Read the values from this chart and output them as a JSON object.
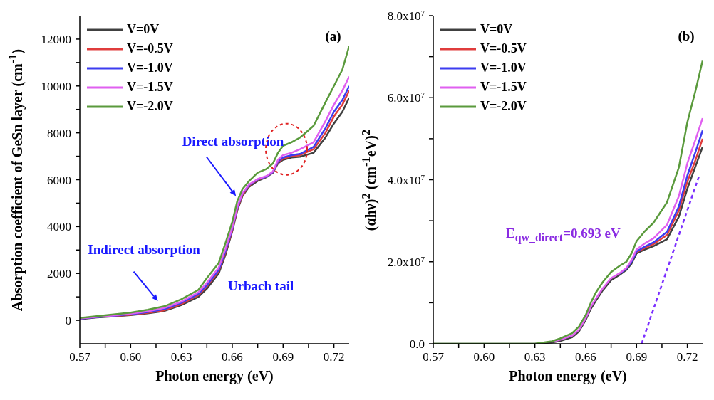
{
  "chart_data": [
    {
      "type": "line",
      "xlabel": "Photon energy (eV)",
      "ylabel": "Absorption coefficient of GeSn layer (cm$^{-1}$)",
      "x": [
        0.57,
        0.58,
        0.59,
        0.6,
        0.61,
        0.62,
        0.63,
        0.64,
        0.645,
        0.652,
        0.656,
        0.66,
        0.663,
        0.666,
        0.67,
        0.675,
        0.68,
        0.684,
        0.687,
        0.69,
        0.695,
        0.7,
        0.708,
        0.715,
        0.72,
        0.725,
        0.729
      ],
      "series": [
        {
          "name": "V=0V",
          "color": "#404040",
          "values": [
            50,
            120,
            170,
            220,
            300,
            400,
            650,
            1000,
            1350,
            2000,
            2800,
            3800,
            4700,
            5300,
            5700,
            5950,
            6100,
            6300,
            6700,
            6850,
            6950,
            6980,
            7150,
            7800,
            8400,
            8900,
            9500
          ]
        },
        {
          "name": "V=-0.5V",
          "color": "#e03c3c",
          "values": [
            null,
            null,
            180,
            240,
            320,
            430,
            700,
            1080,
            1450,
            2100,
            2900,
            3850,
            4750,
            5350,
            5750,
            6000,
            6120,
            6320,
            6750,
            6900,
            7000,
            7050,
            7300,
            8000,
            8700,
            9200,
            9800
          ]
        },
        {
          "name": "V=-1.0V",
          "color": "#3c3cf0",
          "values": [
            70,
            140,
            190,
            260,
            350,
            480,
            750,
            1130,
            1500,
            2150,
            2950,
            3900,
            4800,
            5400,
            5780,
            6010,
            6130,
            6330,
            6780,
            6950,
            7050,
            7100,
            7400,
            8200,
            8900,
            9400,
            10000
          ]
        },
        {
          "name": "V=-1.5V",
          "color": "#e060f0",
          "values": [
            80,
            150,
            210,
            280,
            380,
            530,
            800,
            1200,
            1600,
            2250,
            3050,
            3950,
            4850,
            5420,
            5800,
            6030,
            6150,
            6350,
            6850,
            7050,
            7150,
            7300,
            7600,
            8500,
            9200,
            9800,
            10400
          ]
        },
        {
          "name": "V=-2.0V",
          "color": "#5a9a3c",
          "values": [
            100,
            180,
            250,
            330,
            450,
            600,
            900,
            1300,
            1800,
            2450,
            3300,
            4200,
            5100,
            5600,
            5950,
            6300,
            6450,
            6700,
            7150,
            7450,
            7600,
            7800,
            8300,
            9300,
            10000,
            10700,
            11700
          ]
        }
      ],
      "xlim": [
        0.57,
        0.729
      ],
      "xticks": [
        {
          "value": 0.57,
          "label": "0.57"
        },
        {
          "value": 0.585,
          "label": null
        },
        {
          "value": 0.6,
          "label": "0.60"
        },
        {
          "value": 0.615,
          "label": null
        },
        {
          "value": 0.63,
          "label": "0.63"
        },
        {
          "value": 0.645,
          "label": null
        },
        {
          "value": 0.66,
          "label": "0.66"
        },
        {
          "value": 0.675,
          "label": null
        },
        {
          "value": 0.69,
          "label": "0.69"
        },
        {
          "value": 0.705,
          "label": null
        },
        {
          "value": 0.72,
          "label": "0.72"
        }
      ],
      "ylim": [
        -1000,
        13000
      ],
      "yticks": [
        0,
        {
          "value": 1000,
          "label": null
        },
        2000,
        {
          "value": 3000,
          "label": null
        },
        4000,
        {
          "value": 5000,
          "label": null
        },
        6000,
        {
          "value": 7000,
          "label": null
        },
        8000,
        {
          "value": 9000,
          "label": null
        },
        10000,
        {
          "value": 11000,
          "label": null
        },
        12000
      ],
      "legend": "top left",
      "line_style": "solid",
      "grid": false,
      "annotations": [
        "(a)",
        "Direct absorption",
        "Indirect absorption",
        "Urbach tail"
      ]
    },
    {
      "type": "line",
      "xlabel": "Photon energy (eV)",
      "ylabel": "(αhν)$^{2}$ (cm$^{-1}$eV)$^{2}$",
      "x": [
        0.57,
        0.6,
        0.62,
        0.63,
        0.64,
        0.645,
        0.652,
        0.656,
        0.66,
        0.663,
        0.666,
        0.67,
        0.675,
        0.68,
        0.684,
        0.687,
        0.69,
        0.695,
        0.7,
        0.708,
        0.715,
        0.72,
        0.725,
        0.729
      ],
      "series": [
        {
          "name": "V=0V",
          "color": "#404040",
          "values": [
            0,
            0,
            0,
            0,
            300000,
            700000,
            1600000,
            3000000,
            5800000,
            8500000,
            10500000,
            13000000,
            15500000,
            16800000,
            18000000,
            19500000,
            22000000,
            23000000,
            23800000,
            25500000,
            31000000,
            37800000,
            43500000,
            48000000
          ]
        },
        {
          "name": "V=-0.5V",
          "color": "#e03c3c",
          "values": [
            null,
            null,
            null,
            null,
            null,
            null,
            null,
            null,
            null,
            null,
            null,
            null,
            null,
            null,
            null,
            null,
            22300000,
            23400000,
            24300000,
            26500000,
            32500000,
            39500000,
            45000000,
            50000000
          ]
        },
        {
          "name": "V=-1.0V",
          "color": "#3c3cf0",
          "values": [
            null,
            null,
            null,
            null,
            null,
            null,
            null,
            null,
            null,
            null,
            null,
            null,
            null,
            17100000,
            18300000,
            20000000,
            22500000,
            23700000,
            24700000,
            27300000,
            33500000,
            41000000,
            47000000,
            52000000
          ]
        },
        {
          "name": "V=-1.5V",
          "color": "#e060f0",
          "values": [
            null,
            null,
            null,
            null,
            500000,
            1000000,
            2000000,
            3400000,
            6200000,
            9000000,
            11000000,
            13500000,
            16000000,
            17200000,
            18500000,
            20300000,
            23000000,
            24500000,
            25700000,
            29000000,
            36000000,
            44000000,
            50000000,
            55000000
          ]
        },
        {
          "name": "V=-2.0V",
          "color": "#5a9a3c",
          "values": [
            0,
            0,
            0,
            0,
            600000,
            1300000,
            2600000,
            4200000,
            7000000,
            10000000,
            12500000,
            15000000,
            17500000,
            19000000,
            20000000,
            22000000,
            25000000,
            27500000,
            29500000,
            34500000,
            43000000,
            54000000,
            62000000,
            69000000
          ]
        },
        {
          "type": "line",
          "color": "#7b2fff",
          "line_style": "dashed",
          "x": [
            0.693,
            0.727
          ],
          "values": [
            0,
            41000000
          ]
        }
      ],
      "xlim": [
        0.57,
        0.729
      ],
      "xticks": [
        {
          "value": 0.57,
          "label": "0.57"
        },
        {
          "value": 0.585,
          "label": null
        },
        {
          "value": 0.6,
          "label": "0.60"
        },
        {
          "value": 0.615,
          "label": null
        },
        {
          "value": 0.63,
          "label": "0.63"
        },
        {
          "value": 0.645,
          "label": null
        },
        {
          "value": 0.66,
          "label": "0.66"
        },
        {
          "value": 0.675,
          "label": null
        },
        {
          "value": 0.69,
          "label": "0.69"
        },
        {
          "value": 0.705,
          "label": null
        },
        {
          "value": 0.72,
          "label": "0.72"
        }
      ],
      "ylim": [
        0,
        80000000
      ],
      "yticks": [
        {
          "value": 0,
          "label": "0.0"
        },
        {
          "value": 10000000,
          "label": null
        },
        {
          "value": 20000000,
          "label": "2.0x10$^{7}$"
        },
        {
          "value": 30000000,
          "label": null
        },
        {
          "value": 40000000,
          "label": "4.0x10$^{7}$"
        },
        {
          "value": 50000000,
          "label": null
        },
        {
          "value": 60000000,
          "label": "6.0x10$^{7}$"
        },
        {
          "value": 70000000,
          "label": null
        },
        {
          "value": 80000000,
          "label": "8.0x10$^{7}$"
        }
      ],
      "legend": "top left",
      "line_style": "solid",
      "grid": false,
      "annotations": [
        "(b)",
        "E$_{qw_direct}$=0.693 eV"
      ]
    }
  ]
}
